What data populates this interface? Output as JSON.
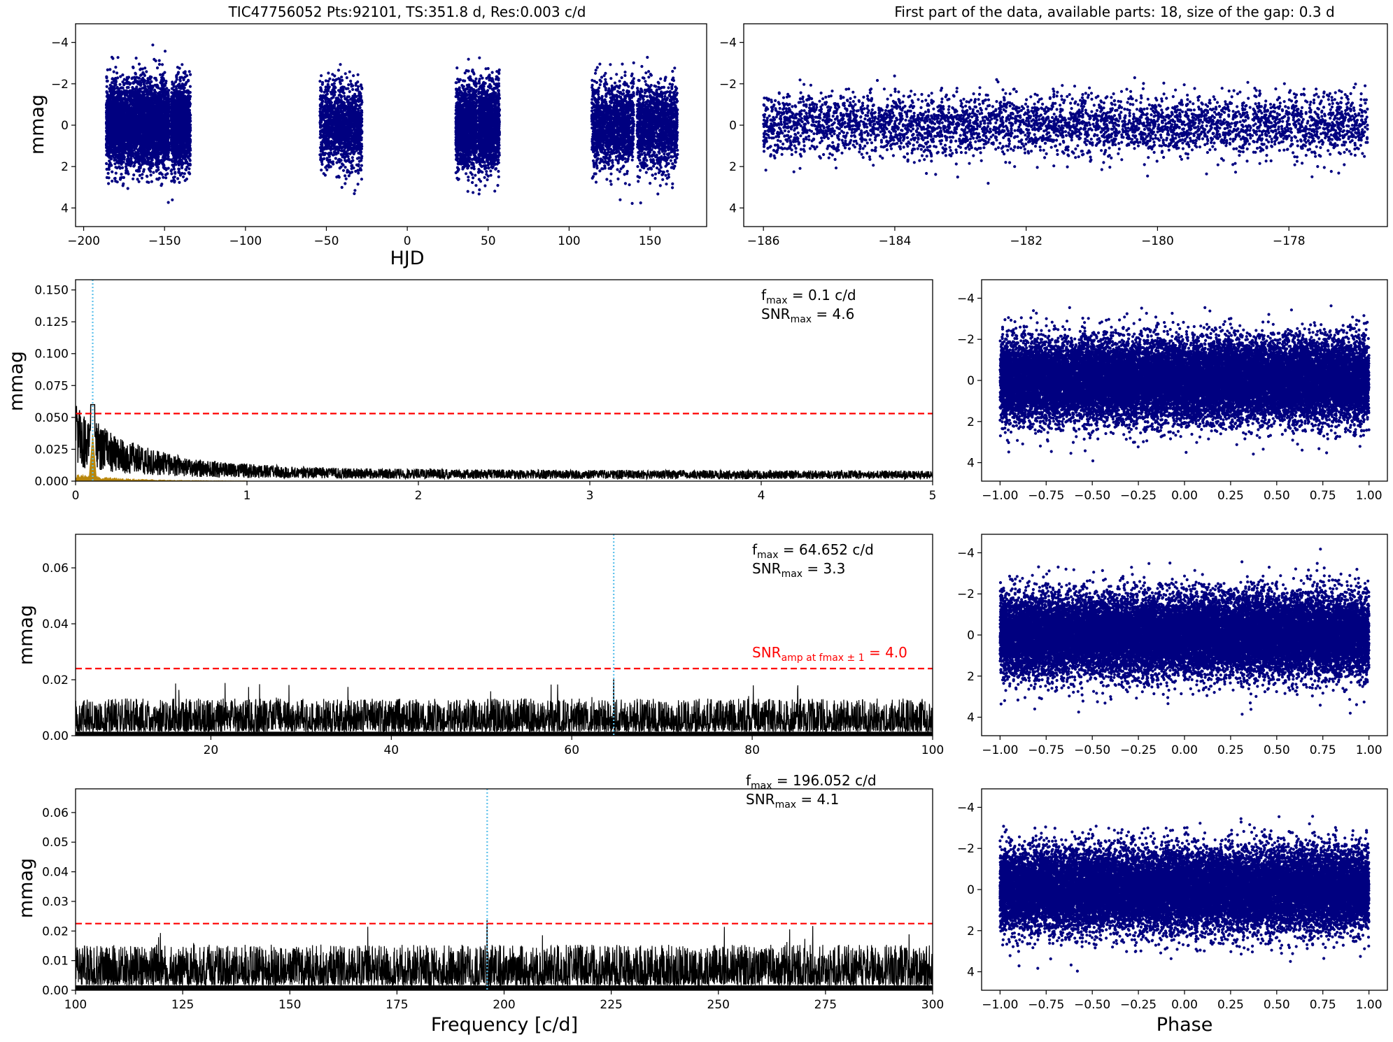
{
  "chart_data": [
    {
      "id": "lightcurve",
      "type": "scatter",
      "title": "TIC47756052  Pts:92101,  TS:351.8 d,  Res:0.003 c/d",
      "xlabel": "HJD",
      "ylabel": "mmag",
      "xlim": [
        -205,
        185
      ],
      "ylim": [
        4.9,
        -4.9
      ],
      "xticks": [
        -200,
        -150,
        -100,
        -50,
        0,
        50,
        100,
        150
      ],
      "yticks": [
        -4,
        -2,
        0,
        2,
        4
      ],
      "series": [
        {
          "color": "#000080",
          "segments": [
            [
              -186,
              -173
            ],
            [
              -173,
              -160
            ],
            [
              -160,
              -147
            ],
            [
              -146,
              -134
            ],
            [
              -54,
              -28
            ],
            [
              30,
              43
            ],
            [
              44,
              57
            ],
            [
              114,
              140
            ],
            [
              142,
              167
            ]
          ],
          "typical_range": [
            -2.7,
            2.7
          ],
          "extreme_range": [
            -4.6,
            4.2
          ]
        }
      ]
    },
    {
      "id": "first-part",
      "type": "scatter",
      "title": "First part of the data, available parts: 18, size of the gap: 0.3 d",
      "xlabel": "",
      "ylabel": "",
      "xlim": [
        -186.3,
        -176.5
      ],
      "ylim": [
        4.9,
        -4.9
      ],
      "xticks": [
        -186,
        -184,
        -182,
        -180,
        -178
      ],
      "yticks": [
        -4,
        -2,
        0,
        2,
        4
      ],
      "series": [
        {
          "color": "#000080",
          "x_range": [
            -186,
            -176.8
          ],
          "typical_range": [
            -1.5,
            1.5
          ],
          "extreme_range": [
            -4.3,
            3.4
          ]
        }
      ]
    },
    {
      "id": "spectrum-1",
      "type": "line",
      "xlabel": "",
      "ylabel": "mmag",
      "xlim": [
        0,
        5
      ],
      "ylim": [
        0,
        0.158
      ],
      "xticks": [
        0,
        1,
        2,
        3,
        4,
        5
      ],
      "yticks": [
        0.0,
        0.025,
        0.05,
        0.075,
        0.1,
        0.125,
        0.15
      ],
      "ytick_labels": [
        "0.000",
        "0.025",
        "0.050",
        "0.075",
        "0.100",
        "0.125",
        "0.150"
      ],
      "threshold": 0.053,
      "peak": {
        "x": 0.1,
        "y": 0.06
      },
      "noise_level": 0.008,
      "window_color": "#b8860b",
      "annotation_fmax": {
        "main": "f",
        "sub": "max",
        "rest": " = 0.1 c/d"
      },
      "annotation_snr": {
        "main": "SNR",
        "sub": "max",
        "rest": " = 4.6"
      }
    },
    {
      "id": "spectrum-2",
      "type": "line",
      "xlabel": "",
      "ylabel": "mmag",
      "xlim": [
        5,
        100
      ],
      "ylim": [
        0,
        0.072
      ],
      "xticks": [
        20,
        40,
        60,
        80,
        100
      ],
      "yticks": [
        0.0,
        0.02,
        0.04,
        0.06
      ],
      "ytick_labels": [
        "0.00",
        "0.02",
        "0.04",
        "0.06"
      ],
      "threshold": 0.024,
      "peak": {
        "x": 64.652,
        "y": 0.02
      },
      "noise_level": 0.0095,
      "annotation_fmax": {
        "main": "f",
        "sub": "max",
        "rest": " = 64.652 c/d"
      },
      "annotation_snr": {
        "main": "SNR",
        "sub": "max",
        "rest": " = 3.3"
      },
      "threshold_label": {
        "main": "SNR",
        "sub": "amp at fmax ± 1",
        "rest": " = 4.0"
      }
    },
    {
      "id": "spectrum-3",
      "type": "line",
      "xlabel": "Frequency [c/d]",
      "ylabel": "mmag",
      "xlim": [
        100,
        300
      ],
      "ylim": [
        0,
        0.068
      ],
      "xticks": [
        100,
        125,
        150,
        175,
        200,
        225,
        250,
        275,
        300
      ],
      "yticks": [
        0.0,
        0.01,
        0.02,
        0.03,
        0.04,
        0.05,
        0.06
      ],
      "ytick_labels": [
        "0.00",
        "0.01",
        "0.02",
        "0.03",
        "0.04",
        "0.05",
        "0.06"
      ],
      "threshold": 0.0225,
      "peak": {
        "x": 196.052,
        "y": 0.0235
      },
      "noise_level": 0.011,
      "annotation_fmax": {
        "main": "f",
        "sub": "max",
        "rest": " = 196.052 c/d"
      },
      "annotation_snr": {
        "main": "SNR",
        "sub": "max",
        "rest": " = 4.1"
      }
    },
    {
      "id": "phase-1",
      "type": "scatter",
      "xlabel": "",
      "ylabel": "",
      "xlim": [
        -1.1,
        1.1
      ],
      "ylim": [
        4.9,
        -4.9
      ],
      "xticks": [
        -1.0,
        -0.75,
        -0.5,
        -0.25,
        0.0,
        0.25,
        0.5,
        0.75,
        1.0
      ],
      "xtick_labels": [
        "−1.00",
        "−0.75",
        "−0.50",
        "−0.25",
        "0.00",
        "0.25",
        "0.50",
        "0.75",
        "1.00"
      ],
      "yticks": [
        -4,
        -2,
        0,
        2,
        4
      ],
      "series": [
        {
          "color": "#000080",
          "x_range": [
            -1,
            1
          ],
          "typical_range": [
            -2.6,
            2.6
          ],
          "extreme_range": [
            -4.9,
            4.2
          ]
        }
      ]
    },
    {
      "id": "phase-2",
      "type": "scatter",
      "xlabel": "",
      "ylabel": "",
      "xlim": [
        -1.1,
        1.1
      ],
      "ylim": [
        4.9,
        -4.9
      ],
      "xticks": [
        -1.0,
        -0.75,
        -0.5,
        -0.25,
        0.0,
        0.25,
        0.5,
        0.75,
        1.0
      ],
      "xtick_labels": [
        "−1.00",
        "−0.75",
        "−0.50",
        "−0.25",
        "0.00",
        "0.25",
        "0.50",
        "0.75",
        "1.00"
      ],
      "yticks": [
        -4,
        -2,
        0,
        2,
        4
      ],
      "series": [
        {
          "color": "#000080",
          "x_range": [
            -1,
            1
          ],
          "typical_range": [
            -2.6,
            2.6
          ],
          "extreme_range": [
            -4.9,
            4.2
          ]
        }
      ]
    },
    {
      "id": "phase-3",
      "type": "scatter",
      "xlabel": "Phase",
      "ylabel": "",
      "xlim": [
        -1.1,
        1.1
      ],
      "ylim": [
        4.9,
        -4.9
      ],
      "xticks": [
        -1.0,
        -0.75,
        -0.5,
        -0.25,
        0.0,
        0.25,
        0.5,
        0.75,
        1.0
      ],
      "xtick_labels": [
        "−1.00",
        "−0.75",
        "−0.50",
        "−0.25",
        "0.00",
        "0.25",
        "0.50",
        "0.75",
        "1.00"
      ],
      "yticks": [
        -4,
        -2,
        0,
        2,
        4
      ],
      "series": [
        {
          "color": "#000080",
          "x_range": [
            -1,
            1
          ],
          "typical_range": [
            -2.6,
            2.6
          ],
          "extreme_range": [
            -4.9,
            4.3
          ]
        }
      ]
    }
  ],
  "colors": {
    "points": "#000080",
    "spectrum": "#000000",
    "threshold": "#ff0000",
    "peak_marker": "#5bc0eb",
    "window": "#b8860b"
  }
}
